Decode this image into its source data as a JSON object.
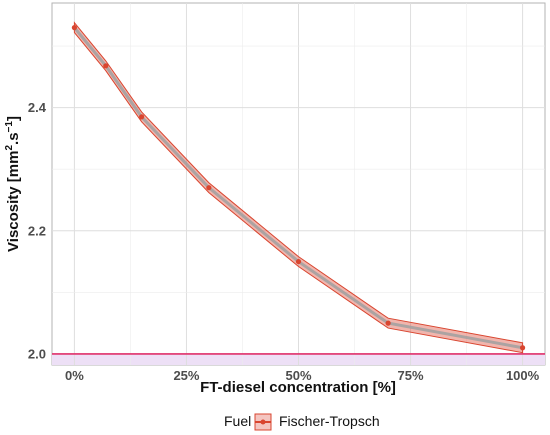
{
  "chart_data": {
    "type": "line",
    "title": "",
    "xlabel": "FT-diesel concentration [%]",
    "ylabel_main": "Viscosity [mm",
    "ylabel_sup1": "2",
    "ylabel_mid": ".s",
    "ylabel_sup2": "−1",
    "ylabel_end": "]",
    "x_ticks": [
      {
        "value": 0,
        "label": "0%"
      },
      {
        "value": 25,
        "label": "25%"
      },
      {
        "value": 50,
        "label": "50%"
      },
      {
        "value": 75,
        "label": "75%"
      },
      {
        "value": 100,
        "label": "100%"
      }
    ],
    "y_ticks": [
      {
        "value": 2.0,
        "label": "2.0"
      },
      {
        "value": 2.2,
        "label": "2.2"
      },
      {
        "value": 2.4,
        "label": "2.4"
      }
    ],
    "xlim": [
      -5,
      105
    ],
    "ylim": [
      1.982,
      2.57
    ],
    "grid": true,
    "legend_position": "bottom",
    "series": [
      {
        "name": "Fischer-Tropsch",
        "color": "#d9452f",
        "ribbon_color": "#e05a4a",
        "x": [
          0,
          7,
          15,
          30,
          50,
          70,
          100
        ],
        "y": [
          2.53,
          2.468,
          2.385,
          2.27,
          2.15,
          2.05,
          2.01
        ],
        "ribbon_half_width": 0.008
      }
    ],
    "reference_line": {
      "y": 2.0,
      "color": "#e0306a"
    },
    "reference_band": {
      "y_from": 1.982,
      "y_to": 2.0,
      "color": "#ede0f6"
    }
  },
  "legend": {
    "title": "Fuel",
    "entries": [
      "Fischer-Tropsch"
    ]
  }
}
